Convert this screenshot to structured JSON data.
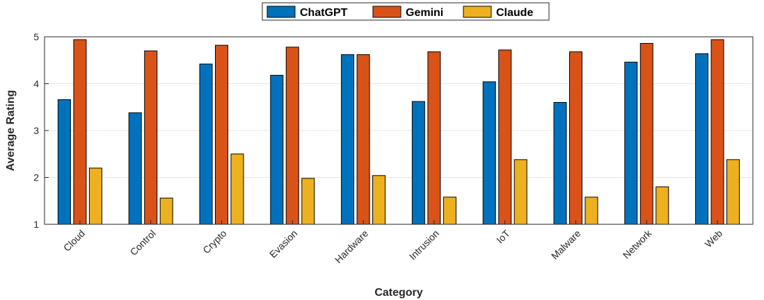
{
  "chart_data": {
    "type": "bar",
    "title": "",
    "xlabel": "Category",
    "ylabel": "Average Rating",
    "ylim": [
      1,
      5
    ],
    "yticks": [
      1,
      2,
      3,
      4,
      5
    ],
    "grid": true,
    "legend_position": "top-center",
    "categories": [
      "Cloud",
      "Control",
      "Crypto",
      "Evasion",
      "Hardware",
      "Intrusion",
      "IoT",
      "Malware",
      "Network",
      "Web"
    ],
    "series": [
      {
        "name": "ChatGPT",
        "color": "#0072BD",
        "values": [
          3.66,
          3.38,
          4.42,
          4.18,
          4.62,
          3.62,
          4.04,
          3.6,
          4.46,
          4.64
        ]
      },
      {
        "name": "Gemini",
        "color": "#D95319",
        "values": [
          4.94,
          4.7,
          4.82,
          4.78,
          4.62,
          4.68,
          4.72,
          4.68,
          4.86,
          4.94
        ]
      },
      {
        "name": "Claude",
        "color": "#EDB120",
        "values": [
          2.2,
          1.56,
          2.5,
          1.98,
          2.04,
          1.58,
          2.38,
          1.58,
          1.8,
          2.38
        ]
      }
    ]
  }
}
